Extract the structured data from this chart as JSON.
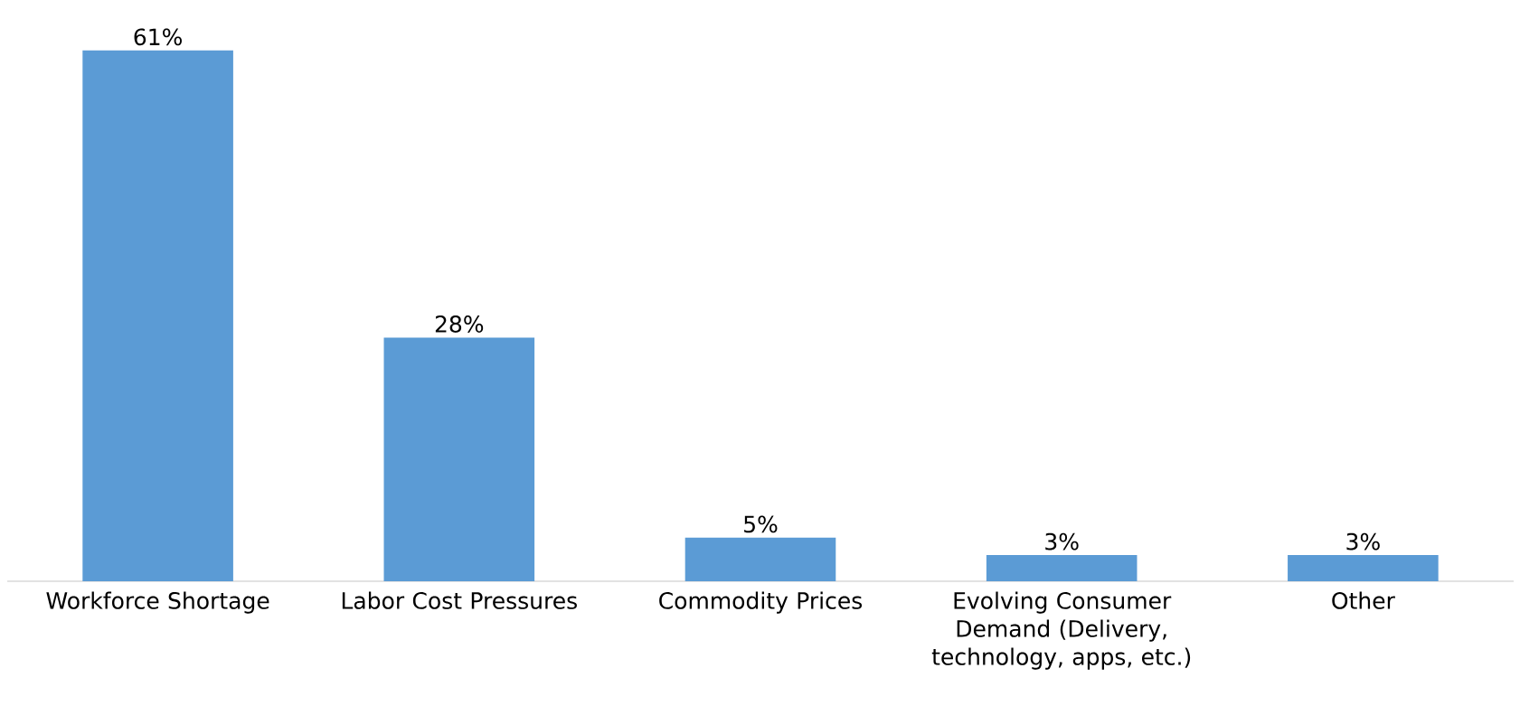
{
  "chart_data": {
    "type": "bar",
    "categories": [
      "Workforce Shortage",
      "Labor Cost Pressures",
      "Commodity Prices",
      "Evolving Consumer Demand (Delivery, technology, apps, etc.)",
      "Other"
    ],
    "values": [
      61,
      28,
      5,
      3,
      3
    ],
    "value_labels": [
      "61%",
      "28%",
      "5%",
      "3%",
      "3%"
    ],
    "color": "#5b9bd5"
  }
}
